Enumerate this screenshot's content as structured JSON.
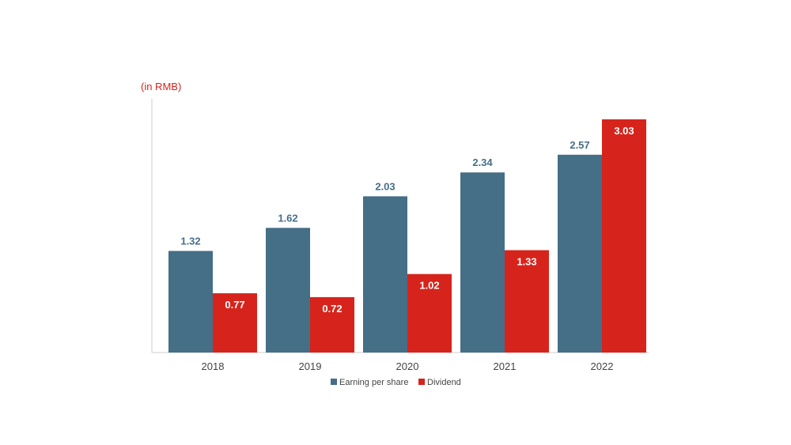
{
  "chart_data": {
    "type": "bar",
    "title": "",
    "unit_label": "(in RMB)",
    "xlabel": "",
    "ylabel": "",
    "categories": [
      "2018",
      "2019",
      "2020",
      "2021",
      "2022"
    ],
    "series": [
      {
        "name": "Earning per share",
        "color": "#456E87",
        "label_color": "#456E87",
        "values": [
          1.32,
          1.62,
          2.03,
          2.34,
          2.57
        ]
      },
      {
        "name": "Dividend",
        "color": "#D6241C",
        "label_color": "#ffffff",
        "values": [
          0.77,
          0.72,
          1.02,
          1.33,
          3.03
        ]
      }
    ],
    "ylim": [
      0,
      3.03
    ],
    "grid": false,
    "legend_position": "bottom-center"
  },
  "colors": {
    "accent": "#D6241C",
    "axis": "#CCCCCC"
  }
}
